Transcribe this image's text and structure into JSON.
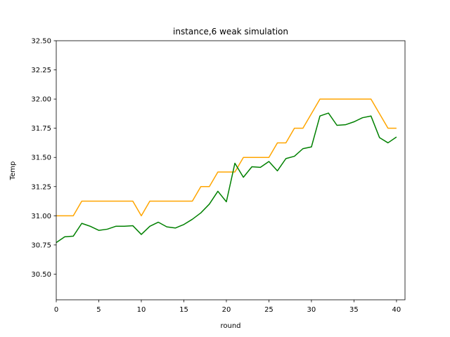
{
  "chart_data": {
    "type": "line",
    "title": "instance,6 weak simulation",
    "xlabel": "round",
    "ylabel": "Temp",
    "xlim": [
      0,
      41
    ],
    "ylim": [
      30.28,
      32.5
    ],
    "xticks": [
      0,
      5,
      10,
      15,
      20,
      25,
      30,
      35,
      40
    ],
    "xtick_labels": [
      "0",
      "5",
      "10",
      "15",
      "20",
      "25",
      "30",
      "35",
      "40"
    ],
    "yticks": [
      30.5,
      30.75,
      31.0,
      31.25,
      31.5,
      31.75,
      32.0,
      32.25,
      32.5
    ],
    "ytick_labels": [
      "30.50",
      "30.75",
      "31.00",
      "31.25",
      "31.50",
      "31.75",
      "32.00",
      "32.25",
      "32.50"
    ],
    "grid": false,
    "x": [
      0,
      1,
      2,
      3,
      4,
      5,
      6,
      7,
      8,
      9,
      10,
      11,
      12,
      13,
      14,
      15,
      16,
      17,
      18,
      19,
      20,
      21,
      22,
      23,
      24,
      25,
      26,
      27,
      28,
      29,
      30,
      31,
      32,
      33,
      34,
      35,
      36,
      37,
      38,
      39,
      40
    ],
    "series": [
      {
        "color": "#ffa500",
        "values": [
          31.0,
          31.0,
          31.0,
          31.125,
          31.125,
          31.125,
          31.125,
          31.125,
          31.125,
          31.125,
          31.0,
          31.125,
          31.125,
          31.125,
          31.125,
          31.125,
          31.125,
          31.25,
          31.25,
          31.375,
          31.375,
          31.375,
          31.5,
          31.5,
          31.5,
          31.5,
          31.625,
          31.625,
          31.75,
          31.75,
          31.875,
          32.0,
          32.0,
          32.0,
          32.0,
          32.0,
          32.0,
          32.0,
          31.875,
          31.75,
          31.75
        ]
      },
      {
        "color": "#008000",
        "values": [
          30.77,
          30.82,
          30.825,
          30.935,
          30.91,
          30.875,
          30.885,
          30.91,
          30.91,
          30.915,
          30.84,
          30.91,
          30.945,
          30.905,
          30.895,
          30.925,
          30.97,
          31.025,
          31.1,
          31.21,
          31.12,
          31.45,
          31.33,
          31.42,
          31.415,
          31.465,
          31.385,
          31.49,
          31.51,
          31.575,
          31.59,
          31.855,
          31.88,
          31.775,
          31.78,
          31.805,
          31.84,
          31.855,
          31.67,
          31.625,
          31.675
        ]
      }
    ]
  }
}
